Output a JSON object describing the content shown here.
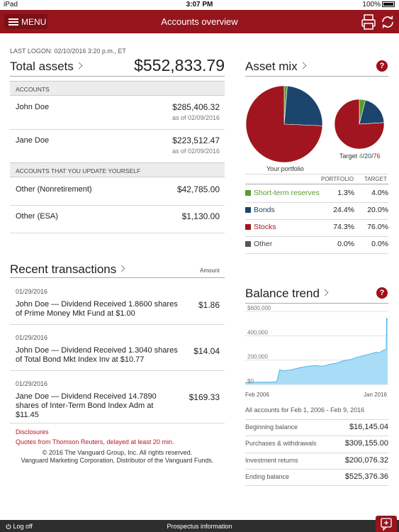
{
  "status_bar": {
    "device": "iPad",
    "time": "3:07 PM",
    "battery": "100%"
  },
  "nav": {
    "menu_label": "MENU",
    "title": "Accounts overview",
    "print_icon": "print-icon",
    "refresh_icon": "refresh-icon"
  },
  "summary": {
    "last_logon": "LAST LOGON: 02/10/2016 3:20 p.m., ET",
    "total_assets_label": "Total assets",
    "total_assets_value": "$552,833.79"
  },
  "accounts": {
    "header": "ACCOUNTS",
    "items": [
      {
        "name": "John Doe",
        "value": "$285,406.32",
        "as_of": "as of 02/09/2016"
      },
      {
        "name": "Jane Doe",
        "value": "$223,512.47",
        "as_of": "as of 02/09/2016"
      }
    ]
  },
  "self_accounts": {
    "header": "ACCOUNTS THAT YOU UPDATE YOURSELF",
    "items": [
      {
        "name": "Other (Nonretirement)",
        "value": "$42,785.00"
      },
      {
        "name": "Other (ESA)",
        "value": "$1,130.00"
      }
    ]
  },
  "transactions": {
    "title": "Recent transactions",
    "amount_label": "Amount",
    "items": [
      {
        "date": "01/29/2016",
        "desc": "John Doe — Dividend Received 1.8600 shares of Prime Money Mkt Fund at $1.00",
        "amount": "$1.86"
      },
      {
        "date": "01/29/2016",
        "desc": "John Doe — Dividend Received 1.3040 shares of Total Bond Mkt Index Inv at $10.77",
        "amount": "$14.04"
      },
      {
        "date": "01/29/2016",
        "desc": "Jane Doe — Dividend Received 14.7890 shares of Inter-Term Bond Index Adm at $11.45",
        "amount": "$169.33"
      }
    ]
  },
  "footer": {
    "disclosures": "Disclosures",
    "quotes": "Quotes from Thomson Reuters, delayed at least 20 min.",
    "copyright_1": "© 2016 The Vanguard Group, Inc. All rights reserved.",
    "copyright_2": "Vanguard Marketing Corporation, Distributor of the Vanguard Funds."
  },
  "asset_mix": {
    "title": "Asset mix",
    "help": "?",
    "portfolio_label": "Your portfolio",
    "target_prefix": "Target ",
    "target_a": "4",
    "target_b": "20",
    "target_c": "76",
    "col_portfolio": "PORTFOLIO",
    "col_target": "TARGET",
    "rows": [
      {
        "name": "Short-term reserves",
        "portfolio": "1.3%",
        "target": "4.0%",
        "color": "#5a9a2f"
      },
      {
        "name": "Bonds",
        "portfolio": "24.4%",
        "target": "20.0%",
        "color": "#1b456d"
      },
      {
        "name": "Stocks",
        "portfolio": "74.3%",
        "target": "76.0%",
        "color": "#a0151f"
      },
      {
        "name": "Other",
        "portfolio": "0.0%",
        "target": "0.0%",
        "color": "#555555"
      }
    ]
  },
  "balance_trend": {
    "title": "Balance trend",
    "help": "?",
    "range_label": "All accounts for Feb 1, 2006 - Feb 9, 2016",
    "rows": [
      {
        "label": "Beginning balance",
        "value": "$16,145.04"
      },
      {
        "label": "Purchases & withdrawals",
        "value": "$309,155.00"
      },
      {
        "label": "Investment returns",
        "value": "$200,076.32"
      },
      {
        "label": "Ending balance",
        "value": "$525,376.36"
      }
    ]
  },
  "bottom_bar": {
    "logoff": "Log off",
    "prospectus": "Prospectus information"
  },
  "chart_data": {
    "type": "area",
    "x_tick_labels": [
      "Feb 2006",
      "Jan 2016"
    ],
    "y_tick_labels": [
      "$600,000",
      "400,000",
      "200,000",
      "$0"
    ],
    "ylim": [
      0,
      600000
    ],
    "x": [
      2006.08,
      2006.5,
      2007,
      2007.5,
      2008,
      2008.3,
      2008.5,
      2008.8,
      2009.2,
      2009.5,
      2010,
      2010.5,
      2011,
      2011.5,
      2012,
      2012.5,
      2013,
      2013.5,
      2014,
      2014.5,
      2015,
      2015.3,
      2015.5,
      2015.7,
      2015.9,
      2016.0,
      2016.02,
      2016.1
    ],
    "values": [
      16145,
      17000,
      18500,
      19500,
      20000,
      21000,
      120000,
      112000,
      118000,
      125000,
      140000,
      150000,
      155000,
      150000,
      165000,
      175000,
      195000,
      205000,
      225000,
      240000,
      255000,
      265000,
      260000,
      275000,
      285000,
      290000,
      545000,
      525376
    ]
  }
}
